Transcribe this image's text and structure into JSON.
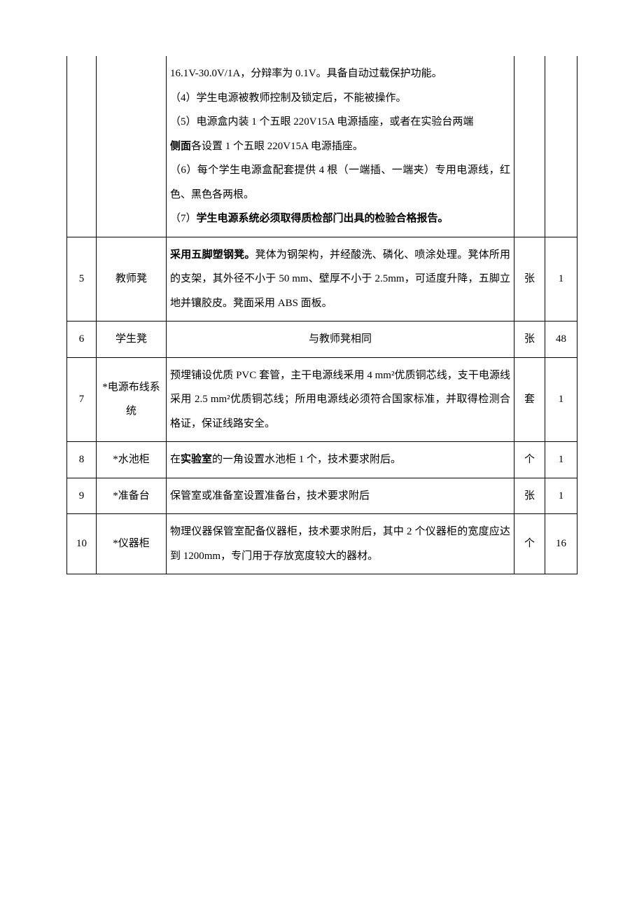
{
  "table": {
    "columns": {
      "num": "col-num",
      "name": "col-name",
      "desc": "col-desc",
      "unit": "col-unit",
      "qty": "col-qty"
    },
    "rows": [
      {
        "num": "",
        "name": "",
        "desc_parts": [
          {
            "text": "16.1V-30.0V/1A，分辩率为 0.1V。具备自动过载保护功能。",
            "bold": false
          },
          {
            "text": "（4）学生电源被教师控制及锁定后，不能被操作。",
            "bold": false
          },
          {
            "text": "（5）电源盒内装 1 个五眼 220V15A 电源插座，或者在实验台两端",
            "bold": false
          },
          {
            "text_bold_prefix": "侧面",
            "text_rest": "各设置 1 个五眼 220V15A 电源插座。"
          },
          {
            "text": "（6）每个学生电源盒配套提供 4 根（一端插、一端夹）专用电源线，红色、黑色各两根。",
            "bold": false
          },
          {
            "text_prefix": "（7）",
            "text_bold_rest": "学生电源系统必须取得质检部门出具的检验合格报告。"
          }
        ],
        "unit": "",
        "qty": "",
        "first": true
      },
      {
        "num": "5",
        "name": "教师凳",
        "desc_html": "bold_prefix",
        "desc_bold": "采用五脚塑钢凳。",
        "desc_rest": "凳体为钢架构，并经酸洗、磷化、喷涂处理。凳体所用的支架，其外径不小于 50 mm、壁厚不小于 2.5mm，可适度升降，五脚立地并镶胶皮。凳面采用 ABS 面板。",
        "unit": "张",
        "qty": "1"
      },
      {
        "num": "6",
        "name": "学生凳",
        "desc_plain": "与教师凳相同",
        "desc_center": true,
        "unit": "张",
        "qty": "48"
      },
      {
        "num": "7",
        "name": "*电源布线系统",
        "desc_plain": "预埋铺设优质 PVC 套管，主干电源线釆用 4 mm²优质铜芯线，支干电源线采用 2.5 mm²优质铜芯线；所用电源线必须符合国家标准，并取得检测合格证，保证线路安全。",
        "unit": "套",
        "qty": "1"
      },
      {
        "num": "8",
        "name": "*水池柜",
        "desc_mixed_prefix": "在",
        "desc_mixed_bold": "实验室",
        "desc_mixed_rest": "的一角设置水池柜 1 个，技术要求附后。",
        "unit": "个",
        "qty": "1"
      },
      {
        "num": "9",
        "name": "*准备台",
        "desc_plain": "保管室或准备室设置准备台，技术要求附后",
        "unit": "张",
        "qty": "1"
      },
      {
        "num": "10",
        "name": "*仪器柜",
        "desc_plain": "物理仪器保管室配备仪器柜，技术要求附后，其中 2 个仪器柜的宽度应达到 1200mm，专门用于存放宽度较大的器材。",
        "unit": "个",
        "qty": "16"
      }
    ]
  }
}
